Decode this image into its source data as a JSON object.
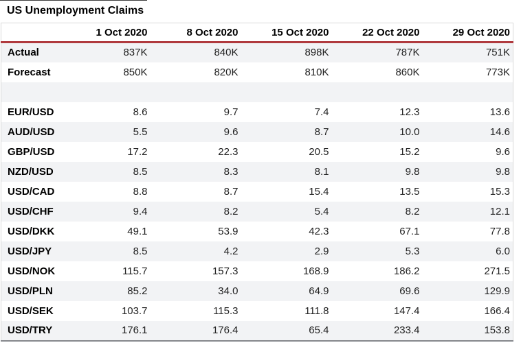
{
  "title": "US Unemployment Claims",
  "colors": {
    "green": "#48b082",
    "red": "#c23b3e",
    "red_line": "#b03a3e",
    "stripe": "#f2f3f5",
    "table_border": "#d9d9d9",
    "table_bottom_border": "#85878c",
    "top_line": "#3d3d3d"
  },
  "chart_data": {
    "type": "table",
    "title": "US Unemployment Claims",
    "columns": [
      "",
      "1 Oct 2020",
      "8 Oct 2020",
      "15 Oct 2020",
      "22 Oct 2020",
      "29 Oct 2020"
    ],
    "rows": [
      {
        "label": "Actual",
        "values": [
          "837K",
          "840K",
          "898K",
          "787K",
          "751K"
        ],
        "value_colors": [
          "green",
          "red",
          "red",
          "green",
          "green"
        ]
      },
      {
        "label": "Forecast",
        "values": [
          "850K",
          "820K",
          "810K",
          "860K",
          "773K"
        ]
      },
      {
        "label": "",
        "values": [
          "",
          "",
          "",
          "",
          ""
        ]
      },
      {
        "label": "EUR/USD",
        "values": [
          "8.6",
          "9.7",
          "7.4",
          "12.3",
          "13.6"
        ]
      },
      {
        "label": "AUD/USD",
        "values": [
          "5.5",
          "9.6",
          "8.7",
          "10.0",
          "14.6"
        ]
      },
      {
        "label": "GBP/USD",
        "values": [
          "17.2",
          "22.3",
          "20.5",
          "15.2",
          "9.6"
        ]
      },
      {
        "label": "NZD/USD",
        "values": [
          "8.5",
          "8.3",
          "8.1",
          "9.8",
          "9.8"
        ]
      },
      {
        "label": "USD/CAD",
        "values": [
          "8.8",
          "8.7",
          "15.4",
          "13.5",
          "15.3"
        ]
      },
      {
        "label": "USD/CHF",
        "values": [
          "9.4",
          "8.2",
          "5.4",
          "8.2",
          "12.1"
        ]
      },
      {
        "label": "USD/DKK",
        "values": [
          "49.1",
          "53.9",
          "42.3",
          "67.1",
          "77.8"
        ]
      },
      {
        "label": "USD/JPY",
        "values": [
          "8.5",
          "4.2",
          "2.9",
          "5.3",
          "6.0"
        ]
      },
      {
        "label": "USD/NOK",
        "values": [
          "115.7",
          "157.3",
          "168.9",
          "186.2",
          "271.5"
        ]
      },
      {
        "label": "USD/PLN",
        "values": [
          "85.2",
          "34.0",
          "64.9",
          "69.6",
          "129.9"
        ]
      },
      {
        "label": "USD/SEK",
        "values": [
          "103.7",
          "115.3",
          "111.8",
          "147.4",
          "166.4"
        ]
      },
      {
        "label": "USD/TRY",
        "values": [
          "176.1",
          "176.4",
          "65.4",
          "233.4",
          "153.8"
        ]
      }
    ]
  }
}
